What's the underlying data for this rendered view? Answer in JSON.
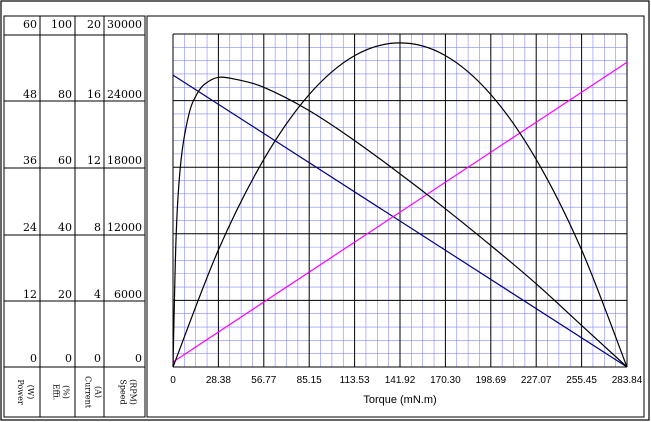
{
  "chart_data": {
    "type": "line",
    "xlabel": "Torque (mN.m)",
    "x_ticks": [
      "0",
      "28.38",
      "56.77",
      "85.15",
      "113.53",
      "141.92",
      "170.30",
      "198.69",
      "227.07",
      "255.45",
      "283.84"
    ],
    "xlim": [
      0,
      283.84
    ],
    "grid": true,
    "y_axes": [
      {
        "key": "power",
        "title_lines": [
          "Power",
          "(W)"
        ],
        "ticks": [
          "60",
          "48",
          "36",
          "24",
          "12",
          "0"
        ],
        "ylim": [
          0,
          60
        ]
      },
      {
        "key": "efficiency",
        "title_lines": [
          "Effi.",
          "(%)"
        ],
        "ticks": [
          "100",
          "80",
          "60",
          "40",
          "20",
          "0"
        ],
        "ylim": [
          0,
          100
        ]
      },
      {
        "key": "current",
        "title_lines": [
          "Current",
          "(A)"
        ],
        "ticks": [
          "20",
          "16",
          "12",
          "8",
          "4",
          "0"
        ],
        "ylim": [
          0,
          20
        ]
      },
      {
        "key": "speed",
        "title_lines": [
          "Speed",
          "(RPM)"
        ],
        "ticks": [
          "30000",
          "24000",
          "18000",
          "12000",
          "6000",
          "0"
        ],
        "ylim": [
          0,
          30000
        ]
      }
    ],
    "series": [
      {
        "axis": "speed",
        "color": "#000080",
        "x": [
          0,
          283.84
        ],
        "y": [
          26300,
          0
        ]
      },
      {
        "axis": "current",
        "color": "#ff00ff",
        "x": [
          0,
          283.84
        ],
        "y": [
          0.3,
          18.3
        ]
      },
      {
        "axis": "power",
        "color": "#000000",
        "x": [
          0,
          28.38,
          56.77,
          85.15,
          113.53,
          141.92,
          170.3,
          198.69,
          227.07,
          255.45,
          283.84
        ],
        "y": [
          0,
          21.1,
          37.4,
          49.1,
          56.1,
          58.4,
          56.1,
          49.1,
          37.4,
          21.1,
          0
        ]
      },
      {
        "axis": "efficiency",
        "color": "#000000",
        "x": [
          0,
          2,
          5,
          10,
          15,
          20,
          28.38,
          40,
          56.77,
          85.15,
          113.53,
          141.92,
          170.3,
          198.69,
          227.07,
          255.45,
          283.84
        ],
        "y": [
          0,
          40,
          62,
          76,
          82,
          85,
          87,
          86.3,
          84,
          77,
          68,
          58,
          47.5,
          36.5,
          25,
          12.5,
          0
        ]
      }
    ]
  }
}
